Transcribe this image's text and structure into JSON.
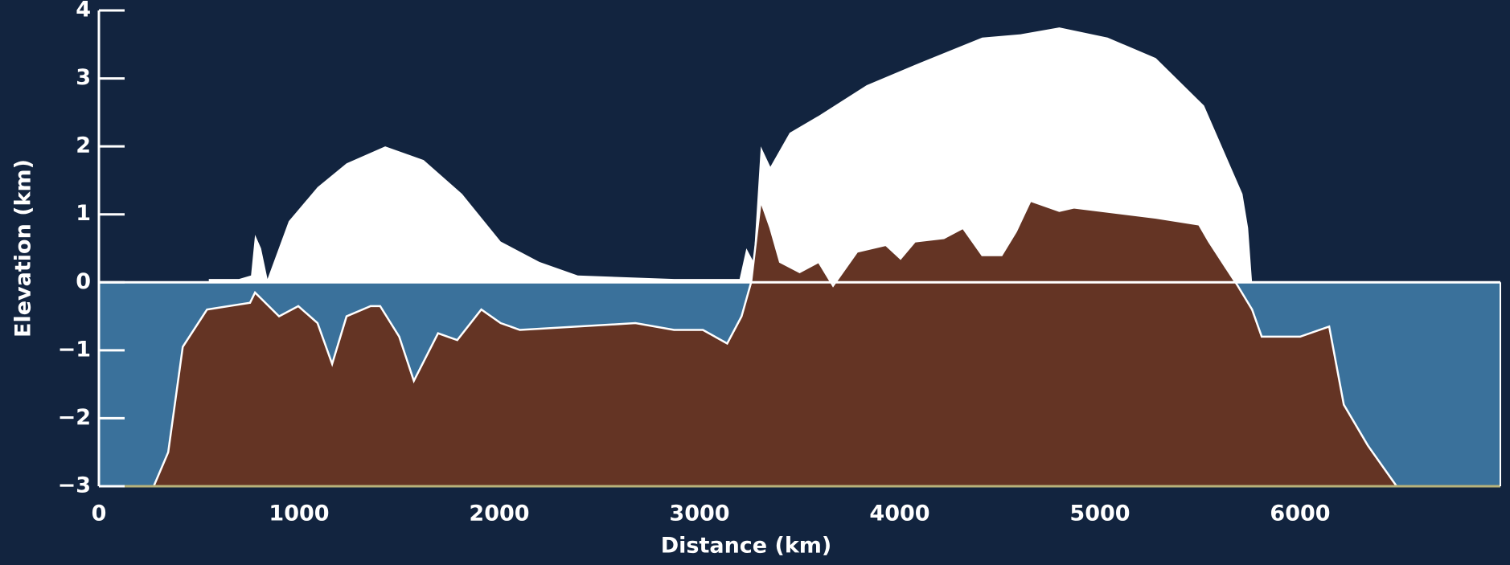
{
  "chart_data": {
    "type": "area",
    "xlabel": "Distance (km)",
    "ylabel": "Elevation (km)",
    "xlim": [
      0,
      7000
    ],
    "ylim": [
      -3,
      4
    ],
    "xticks": [
      0,
      1000,
      2000,
      3000,
      4000,
      5000,
      6000
    ],
    "yticks": [
      {
        "value": -3,
        "label": "−3"
      },
      {
        "value": -2,
        "label": "−2"
      },
      {
        "value": -1,
        "label": "−1"
      },
      0,
      1,
      2,
      3,
      4
    ],
    "background": "#12243f",
    "ocean_color": "#3a719b",
    "series": [
      {
        "color": "#ffffff",
        "x": [
          549,
          700,
          760,
          780,
          810,
          842,
          948,
          1092,
          1237,
          1430,
          1622,
          1814,
          2007,
          2200,
          2392,
          2873,
          3200,
          3234,
          3270,
          3306,
          3354,
          3450,
          3595,
          3835,
          4076,
          4412,
          4605,
          4797,
          5038,
          5279,
          5520,
          5712,
          5740,
          5760
        ],
        "values": [
          0.05,
          0.05,
          0.1,
          0.7,
          0.5,
          0.05,
          0.9,
          1.4,
          1.75,
          2.0,
          1.8,
          1.3,
          0.6,
          0.3,
          0.1,
          0.05,
          0.05,
          0.5,
          0.3,
          2.0,
          1.7,
          2.2,
          2.45,
          2.9,
          3.2,
          3.6,
          3.65,
          3.75,
          3.6,
          3.3,
          2.6,
          1.3,
          0.8,
          0
        ]
      },
      {
        "color": "#643424",
        "x": [
          274,
          346,
          419,
          540,
          755,
          780,
          900,
          996,
          1092,
          1165,
          1237,
          1357,
          1405,
          1500,
          1573,
          1694,
          1790,
          1910,
          2007,
          2103,
          2392,
          2680,
          2873,
          3017,
          3138,
          3210,
          3258,
          3306,
          3354,
          3402,
          3500,
          3595,
          3667,
          3787,
          3931,
          4004,
          4076,
          4220,
          4316,
          4412,
          4509,
          4581,
          4653,
          4797,
          4870,
          5279,
          5495,
          5544,
          5688,
          5760,
          5808,
          6000,
          6145,
          6218,
          6338,
          6482
        ],
        "values": [
          -3,
          -2.5,
          -0.95,
          -0.4,
          -0.3,
          -0.15,
          -0.5,
          -0.35,
          -0.6,
          -1.2,
          -0.5,
          -0.35,
          -0.35,
          -0.8,
          -1.45,
          -0.75,
          -0.85,
          -0.4,
          -0.6,
          -0.7,
          -0.65,
          -0.6,
          -0.7,
          -0.7,
          -0.9,
          -0.5,
          0,
          1.2,
          0.8,
          0.3,
          0.15,
          0.3,
          -0.05,
          0.45,
          0.55,
          0.35,
          0.6,
          0.65,
          0.8,
          0.4,
          0.4,
          0.75,
          1.2,
          1.05,
          1.1,
          0.95,
          0.85,
          0.6,
          -0.05,
          -0.4,
          -0.8,
          -0.8,
          -0.65,
          -1.8,
          -2.4,
          -3
        ]
      }
    ]
  }
}
